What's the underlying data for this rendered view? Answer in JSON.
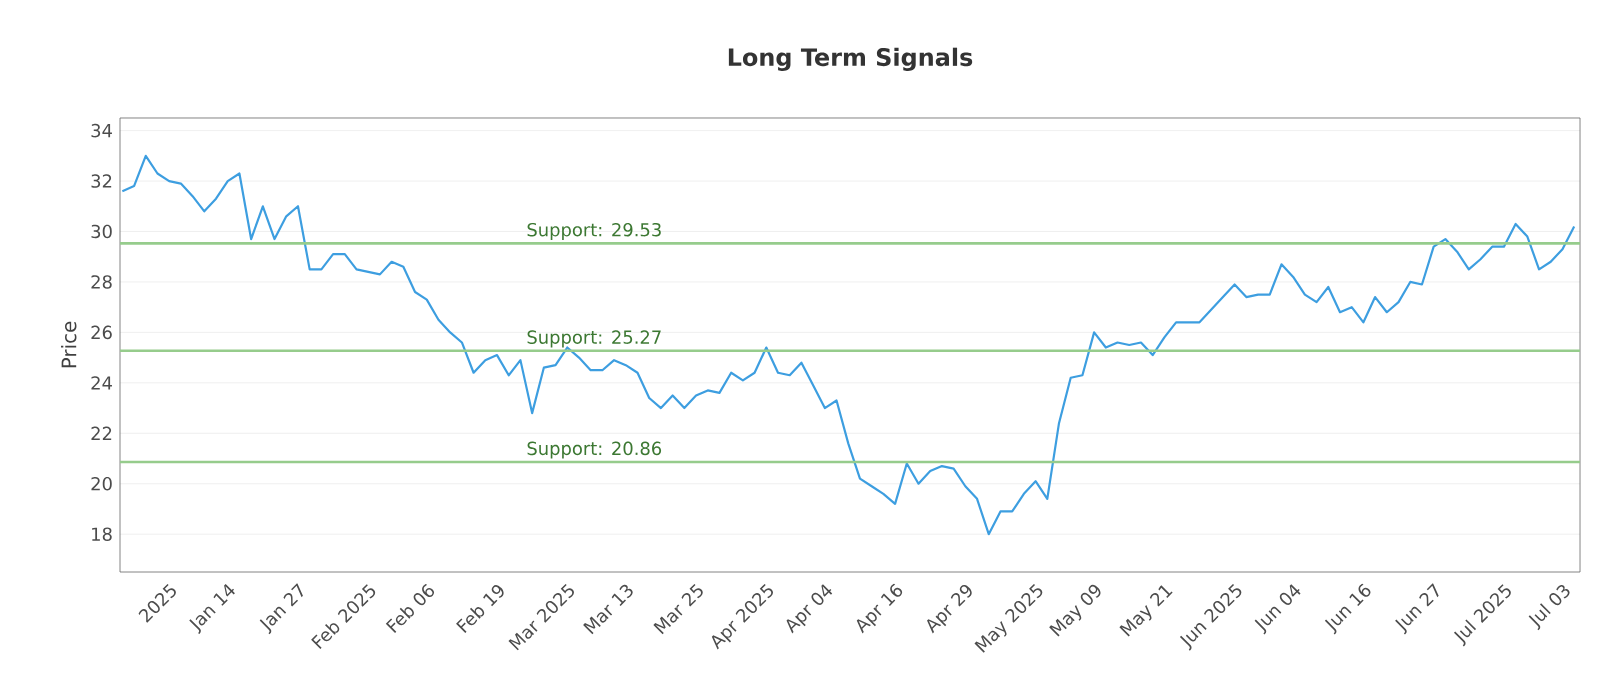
{
  "chart_data": {
    "type": "line",
    "title": "Long Term Signals",
    "ylabel": "Price",
    "categories": [
      null,
      null,
      null,
      null,
      "2025",
      null,
      null,
      null,
      null,
      "Jan 14",
      null,
      null,
      null,
      null,
      null,
      "Jan 27",
      null,
      null,
      null,
      null,
      null,
      "Feb 2025",
      null,
      null,
      null,
      null,
      "Feb 06",
      null,
      null,
      null,
      null,
      null,
      "Feb 19",
      null,
      null,
      null,
      null,
      null,
      "Mar 2025",
      null,
      null,
      null,
      null,
      "Mar 13",
      null,
      null,
      null,
      null,
      null,
      "Mar 25",
      null,
      null,
      null,
      null,
      null,
      "Apr 2025",
      null,
      null,
      null,
      null,
      "Apr 04",
      null,
      null,
      null,
      null,
      null,
      "Apr 16",
      null,
      null,
      null,
      null,
      null,
      "Apr 29",
      null,
      null,
      null,
      null,
      null,
      "May 2025",
      null,
      null,
      null,
      null,
      "May 09",
      null,
      null,
      null,
      null,
      null,
      "May 21",
      null,
      null,
      null,
      null,
      null,
      "Jun 2025",
      null,
      null,
      null,
      null,
      "Jun 04",
      null,
      null,
      null,
      null,
      null,
      "Jun 16",
      null,
      null,
      null,
      null,
      null,
      "Jun 27",
      null,
      null,
      null,
      null,
      null,
      "Jul 2025",
      null,
      null,
      null,
      null,
      "Jul 03",
      null
    ],
    "series": [
      {
        "color": "#3d9ee0",
        "values": [
          31.6,
          31.8,
          33.0,
          32.3,
          32.0,
          31.9,
          31.4,
          30.8,
          31.3,
          32.0,
          32.3,
          29.7,
          31.0,
          29.7,
          30.6,
          31.0,
          28.5,
          28.5,
          29.1,
          29.1,
          28.5,
          28.4,
          28.3,
          28.8,
          28.6,
          27.6,
          27.3,
          26.5,
          26.0,
          25.6,
          24.4,
          24.9,
          25.1,
          24.3,
          24.9,
          22.8,
          24.6,
          24.7,
          25.4,
          25.0,
          24.5,
          24.5,
          24.9,
          24.7,
          24.4,
          23.4,
          23.0,
          23.5,
          23.0,
          23.5,
          23.7,
          23.6,
          24.4,
          24.1,
          24.4,
          25.4,
          24.4,
          24.3,
          24.8,
          23.9,
          23.0,
          23.3,
          21.6,
          20.2,
          19.9,
          19.6,
          19.2,
          20.8,
          20.0,
          20.5,
          20.7,
          20.6,
          19.9,
          19.4,
          18.0,
          18.9,
          18.9,
          19.6,
          20.1,
          19.4,
          22.4,
          24.2,
          24.3,
          26.0,
          25.4,
          25.6,
          25.5,
          25.6,
          25.1,
          25.8,
          26.4,
          26.4,
          26.4,
          26.9,
          27.4,
          27.9,
          27.4,
          27.5,
          27.5,
          28.7,
          28.2,
          27.5,
          27.2,
          27.8,
          26.8,
          27.0,
          26.4,
          27.4,
          26.8,
          27.2,
          28.0,
          27.9,
          29.4,
          29.7,
          29.2,
          28.5,
          28.9,
          29.4,
          29.4,
          30.3,
          29.8,
          28.5,
          28.8,
          29.3,
          30.2
        ]
      }
    ],
    "ylim": [
      16.5,
      34.5
    ],
    "yticks": [
      18,
      20,
      22,
      24,
      26,
      28,
      30,
      32,
      34
    ],
    "grid": "y",
    "marker": "none",
    "line_style": "solid",
    "ref_lines": [
      {
        "axis": "y",
        "value": 29.53,
        "label": "Support: 29.53",
        "color": "#96cc8c"
      },
      {
        "axis": "y",
        "value": 25.27,
        "label": "Support: 25.27",
        "color": "#96cc8c"
      },
      {
        "axis": "y",
        "value": 20.86,
        "label": "Support: 20.86",
        "color": "#96cc8c"
      }
    ]
  }
}
